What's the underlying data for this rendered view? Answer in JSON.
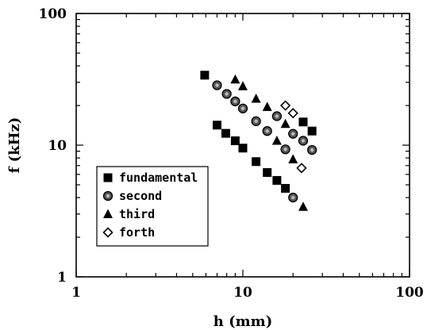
{
  "chart_data": {
    "type": "scatter",
    "xlabel": "h (mm)",
    "ylabel": "f (kHz)",
    "xscale": "log",
    "yscale": "log",
    "xlim": [
      1,
      100
    ],
    "ylim": [
      1,
      100
    ],
    "x_tick_labels": [
      "1",
      "10",
      "100"
    ],
    "y_tick_labels": [
      "1",
      "10",
      "100"
    ],
    "grid": false,
    "legend_position": "lower-left",
    "series": [
      {
        "name": "fundamental",
        "marker": "filled-square",
        "points": [
          [
            5.9,
            34
          ],
          [
            7.0,
            14.2
          ],
          [
            7.9,
            12.3
          ],
          [
            9.0,
            10.8
          ],
          [
            10.0,
            9.5
          ],
          [
            12.0,
            7.5
          ],
          [
            14.0,
            6.2
          ],
          [
            16.0,
            5.4
          ],
          [
            18.0,
            4.7
          ],
          [
            23.0,
            15.0
          ],
          [
            26.0,
            12.8
          ]
        ]
      },
      {
        "name": "second",
        "marker": "filled-circle",
        "points": [
          [
            7.0,
            28.5
          ],
          [
            8.0,
            24.5
          ],
          [
            9.0,
            21.5
          ],
          [
            10.0,
            19.0
          ],
          [
            12.0,
            15.2
          ],
          [
            14.0,
            12.8
          ],
          [
            16.0,
            16.6
          ],
          [
            18.0,
            9.3
          ],
          [
            20.0,
            4.0
          ],
          [
            20.0,
            12.2
          ],
          [
            23.0,
            10.8
          ],
          [
            26.0,
            9.2
          ]
        ]
      },
      {
        "name": "third",
        "marker": "filled-triangle",
        "points": [
          [
            9.0,
            31.5
          ],
          [
            10.0,
            28.0
          ],
          [
            12.0,
            22.5
          ],
          [
            14.0,
            19.5
          ],
          [
            16.0,
            10.8
          ],
          [
            18.0,
            14.5
          ],
          [
            20.0,
            7.8
          ],
          [
            23.0,
            3.4
          ]
        ]
      },
      {
        "name": "forth",
        "marker": "open-diamond",
        "points": [
          [
            18.0,
            20.0
          ],
          [
            20.0,
            17.5
          ],
          [
            22.5,
            6.7
          ]
        ]
      }
    ]
  }
}
